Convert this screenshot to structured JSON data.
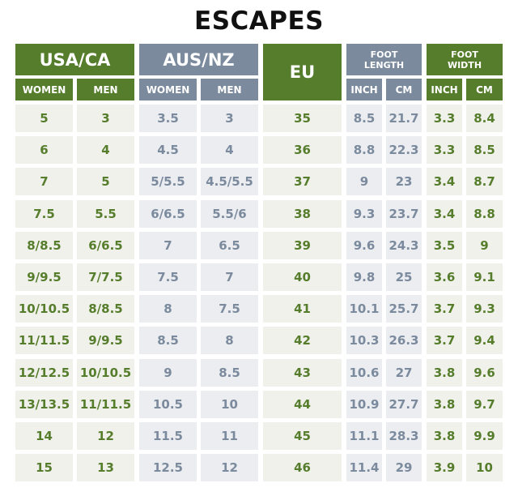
{
  "title": "ESCAPES",
  "headers": {
    "usa_ca": "USA/CA",
    "aus_nz": "AUS/NZ",
    "eu": "EU",
    "foot_length": "FOOT\nLENGTH",
    "foot_width": "FOOT\nWIDTH",
    "women": "WOMEN",
    "men": "MEN",
    "inch": "INCH",
    "cm": "CM"
  },
  "colors": {
    "green_header": "#567d2c",
    "gray_header": "#7b8a9d",
    "green_text": "#567d2c",
    "gray_text": "#7b8a9d",
    "cell_bg_warm": "#f1f1ec",
    "cell_bg_cool": "#ebedf1"
  },
  "rows": [
    [
      "5",
      "3",
      "3.5",
      "3",
      "35",
      "8.5",
      "21.7",
      "3.3",
      "8.4"
    ],
    [
      "6",
      "4",
      "4.5",
      "4",
      "36",
      "8.8",
      "22.3",
      "3.3",
      "8.5"
    ],
    [
      "7",
      "5",
      "5/5.5",
      "4.5/5.5",
      "37",
      "9",
      "23",
      "3.4",
      "8.7"
    ],
    [
      "7.5",
      "5.5",
      "6/6.5",
      "5.5/6",
      "38",
      "9.3",
      "23.7",
      "3.4",
      "8.8"
    ],
    [
      "8/8.5",
      "6/6.5",
      "7",
      "6.5",
      "39",
      "9.6",
      "24.3",
      "3.5",
      "9"
    ],
    [
      "9/9.5",
      "7/7.5",
      "7.5",
      "7",
      "40",
      "9.8",
      "25",
      "3.6",
      "9.1"
    ],
    [
      "10/10.5",
      "8/8.5",
      "8",
      "7.5",
      "41",
      "10.1",
      "25.7",
      "3.7",
      "9.3"
    ],
    [
      "11/11.5",
      "9/9.5",
      "8.5",
      "8",
      "42",
      "10.3",
      "26.3",
      "3.7",
      "9.4"
    ],
    [
      "12/12.5",
      "10/10.5",
      "9",
      "8.5",
      "43",
      "10.6",
      "27",
      "3.8",
      "9.6"
    ],
    [
      "13/13.5",
      "11/11.5",
      "10.5",
      "10",
      "44",
      "10.9",
      "27.7",
      "3.8",
      "9.7"
    ],
    [
      "14",
      "12",
      "11.5",
      "11",
      "45",
      "11.1",
      "28.3",
      "3.8",
      "9.9"
    ],
    [
      "15",
      "13",
      "12.5",
      "12",
      "46",
      "11.4",
      "29",
      "3.9",
      "10"
    ]
  ]
}
